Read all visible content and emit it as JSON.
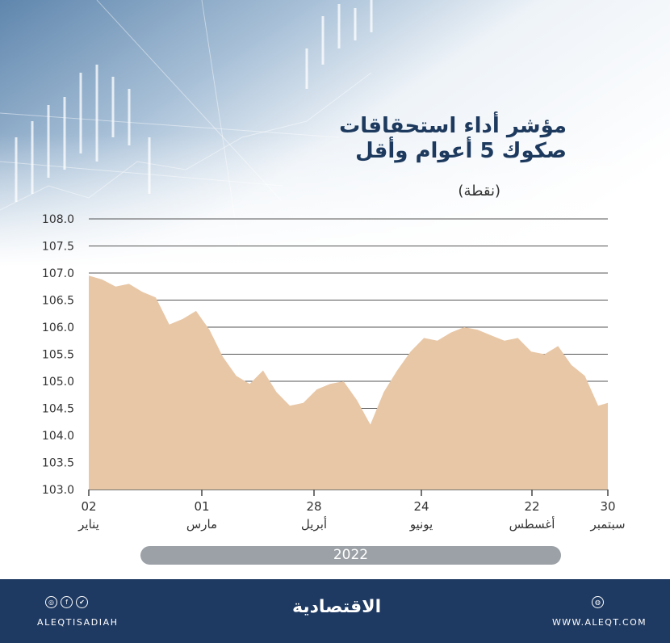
{
  "header": {
    "title_line1": "مؤشر أداء استحقاقات",
    "title_line2": "صكوك 5 أعوام وأقل",
    "unit": "(نقطة)"
  },
  "chart_data": {
    "type": "area",
    "title": "مؤشر أداء استحقاقات صكوك 5 أعوام وأقل",
    "ylabel": "(نقطة)",
    "ylim": [
      103.0,
      108.0
    ],
    "yticks": [
      "108.0",
      "107.5",
      "107.0",
      "106.5",
      "106.0",
      "105.5",
      "105.0",
      "104.5",
      "104.0",
      "103.5",
      "103.0"
    ],
    "xticks": [
      {
        "day": "02",
        "month": "يناير"
      },
      {
        "day": "01",
        "month": "مارس"
      },
      {
        "day": "28",
        "month": "أبريل"
      },
      {
        "day": "24",
        "month": "يونيو"
      },
      {
        "day": "22",
        "month": "أغسطس"
      },
      {
        "day": "30",
        "month": "سبتمبر"
      }
    ],
    "year": "2022",
    "grid": true,
    "fill_color": "#e8c7a6",
    "x": [
      "2022-01-02",
      "2022-01-09",
      "2022-01-16",
      "2022-01-23",
      "2022-01-30",
      "2022-02-06",
      "2022-02-13",
      "2022-02-20",
      "2022-02-27",
      "2022-03-06",
      "2022-03-13",
      "2022-03-20",
      "2022-03-27",
      "2022-04-03",
      "2022-04-10",
      "2022-04-17",
      "2022-04-24",
      "2022-05-01",
      "2022-05-08",
      "2022-05-15",
      "2022-05-22",
      "2022-05-29",
      "2022-06-05",
      "2022-06-12",
      "2022-06-19",
      "2022-06-26",
      "2022-07-03",
      "2022-07-10",
      "2022-07-17",
      "2022-07-24",
      "2022-07-31",
      "2022-08-07",
      "2022-08-14",
      "2022-08-21",
      "2022-08-28",
      "2022-09-04",
      "2022-09-11",
      "2022-09-18",
      "2022-09-25",
      "2022-09-30"
    ],
    "values": [
      106.95,
      106.88,
      106.75,
      106.8,
      106.65,
      106.55,
      106.05,
      106.15,
      106.3,
      105.95,
      105.45,
      105.1,
      104.95,
      105.2,
      104.8,
      104.55,
      104.6,
      104.85,
      104.95,
      105.0,
      104.65,
      104.2,
      104.8,
      105.2,
      105.55,
      105.8,
      105.75,
      105.9,
      106.0,
      105.95,
      105.85,
      105.75,
      105.8,
      105.55,
      105.5,
      105.65,
      105.3,
      105.1,
      104.55,
      104.6
    ]
  },
  "footer": {
    "social_handle": "ALEQTISADIAH",
    "logo": "الاقتصادية",
    "website": "WWW.ALEQT.COM",
    "icons": [
      "instagram-icon",
      "facebook-icon",
      "twitter-icon",
      "web-icon"
    ]
  },
  "colors": {
    "title": "#1d3a5e",
    "area": "#e8c7a6",
    "footer": "#1f3a62",
    "year_bar": "#9ba1a6"
  }
}
